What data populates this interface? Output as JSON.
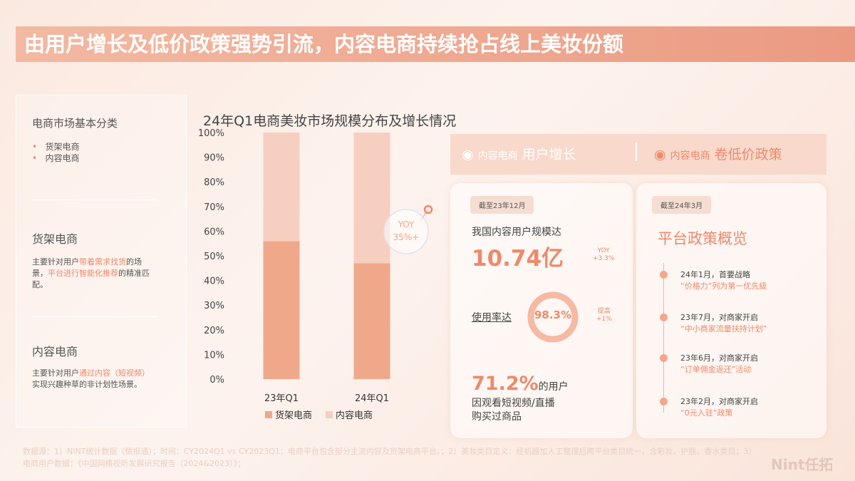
{
  "header": {
    "title": "由用户增长及低价政策强势引流，内容电商持续抢占线上美妆份额"
  },
  "left_panel": {
    "heading": "电商市场基本分类",
    "list": [
      "货架电商",
      "内容电商"
    ],
    "sections": [
      {
        "title": "货架电商",
        "segments": [
          {
            "text": "主要针对用户"
          },
          {
            "text": "带着需求找货",
            "accent": true
          },
          {
            "text": "的场景，"
          },
          {
            "text": "平台进行智能化推荐",
            "accent": true
          },
          {
            "text": "的精准匹配。"
          }
        ]
      },
      {
        "title": "内容电商",
        "segments": [
          {
            "text": "主要针对用户"
          },
          {
            "text": "通过内容（短视频）",
            "accent": true
          },
          {
            "text": "实现兴趣种草的非计划性场景。"
          }
        ]
      }
    ]
  },
  "chart_data": {
    "type": "stacked_bar",
    "title": "24年Q1电商美妆市场规模分布及增长情况",
    "categories": [
      "23年Q1",
      "24年Q1"
    ],
    "series": [
      {
        "name": "货架电商",
        "color": "#f0a88b",
        "values": [
          56,
          47
        ]
      },
      {
        "name": "内容电商",
        "color": "#f7cfc0",
        "values": [
          44,
          53
        ]
      }
    ],
    "ylim": [
      0,
      100
    ],
    "yticks": [
      {
        "value": 0,
        "label": "0%"
      },
      {
        "value": 10,
        "label": "10%"
      },
      {
        "value": 20,
        "label": "20%"
      },
      {
        "value": 30,
        "label": "30%"
      },
      {
        "value": 40,
        "label": "40%"
      },
      {
        "value": 50,
        "label": "50%"
      },
      {
        "value": 60,
        "label": "60%"
      },
      {
        "value": 70,
        "label": "70%"
      },
      {
        "value": 80,
        "label": "80%"
      },
      {
        "value": 90,
        "label": "90%"
      },
      {
        "value": 100,
        "label": "100%"
      }
    ],
    "annotation": {
      "label": "YOY",
      "value": "35%+"
    }
  },
  "tabs": [
    {
      "prefix": "内容电商",
      "title": "用户增长"
    },
    {
      "prefix": "内容电商",
      "title": "卷低价政策"
    }
  ],
  "card_users": {
    "badge": "截至23年12月",
    "scale_label": "我国内容用户规模达",
    "scale_value": "10.74亿",
    "scale_yoy_label": "YOY",
    "scale_yoy": "+3.3%",
    "usage_label": "使用率达",
    "usage_value": "98.3%",
    "usage_change_label": "提高",
    "usage_change": "+1%",
    "share_value": "71.2%",
    "share_suffix": "的用户",
    "share_line1": "因观看短视频/直播",
    "share_line2": "购买过商品"
  },
  "card_policy": {
    "badge": "截至24年3月",
    "title": "平台政策概览",
    "items": [
      {
        "date": "24年1月，首要战略",
        "detail": "“价格力”列为第一优先级"
      },
      {
        "date": "23年7月，对商家开启",
        "detail": "“中小商家流量扶持计划”"
      },
      {
        "date": "23年6月，对商家开启",
        "detail": "“订单佣金返还”活动"
      },
      {
        "date": "23年2月，对商家开启",
        "detail": "“0元入驻”政策"
      }
    ]
  },
  "footer": {
    "source": "数据源：1）NINT统计数据（情报通）；时间：CY2024Q1 vs CY2023Q1；电商平台包含部分主流内容及货架电商平台。；2）美妆类目定义：经机器加人工整理后跨平台类目统一，含彩妆、护肤、香水类目；3）电商用户数据：《中国网络视听发展研究报告（2024&2023）》；",
    "logo": "Nint任拓"
  }
}
